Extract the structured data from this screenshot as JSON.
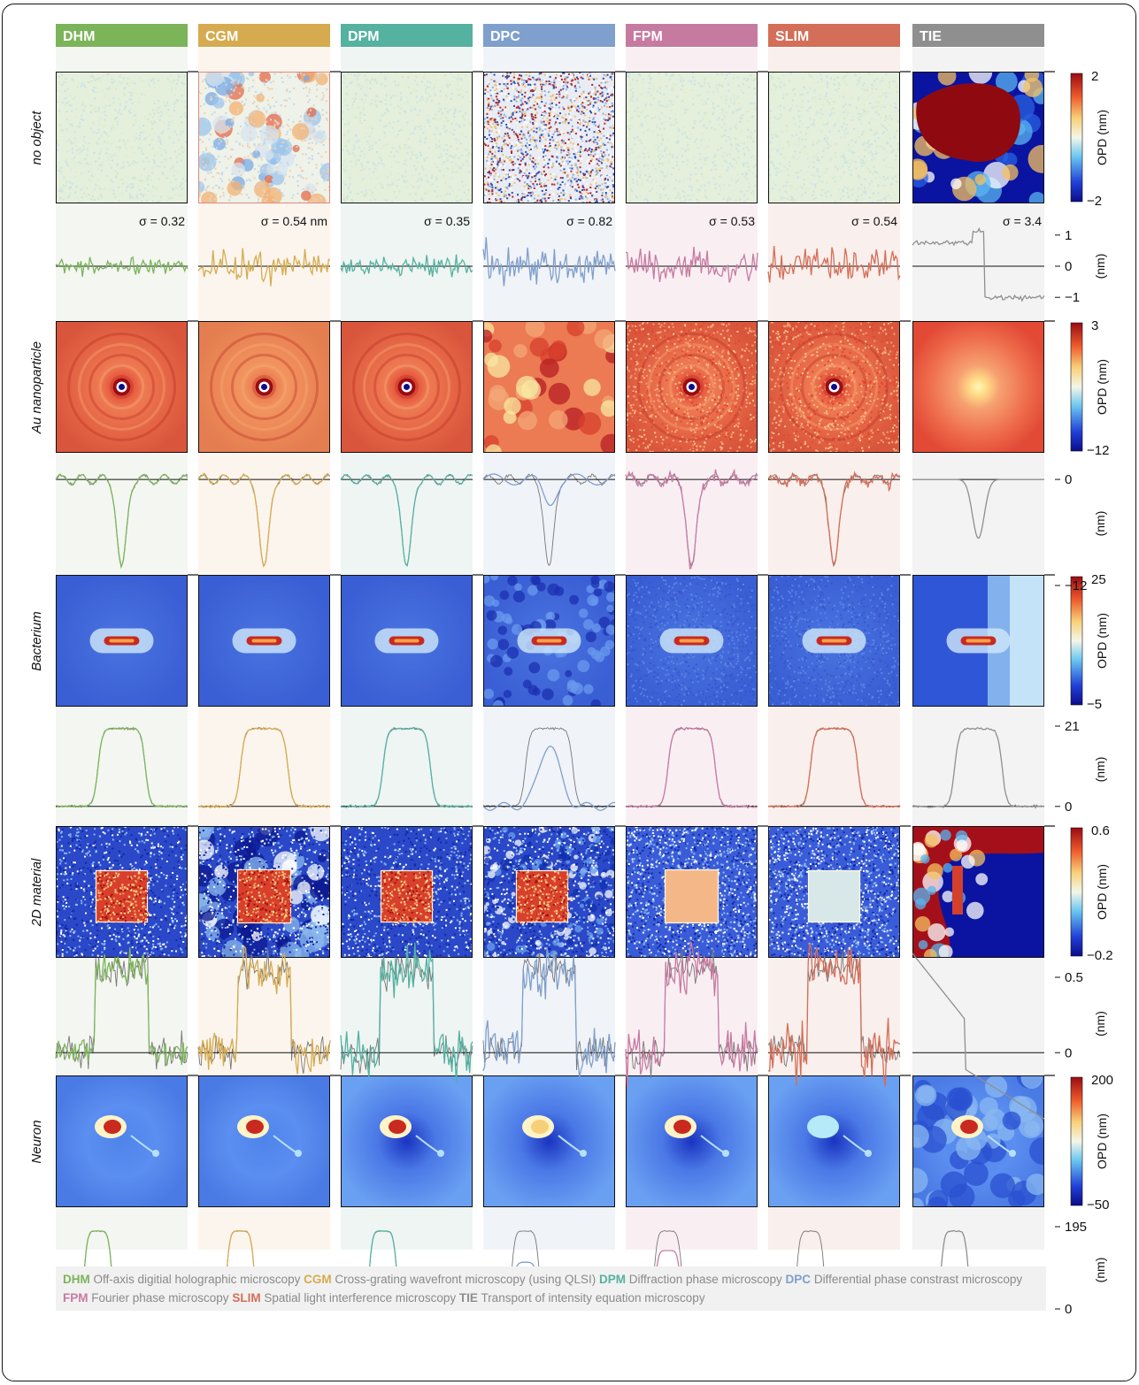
{
  "methods": [
    {
      "abbr": "DHM",
      "color": "#7cb45a",
      "bg": "#f3f6f1",
      "desc": "Off-axis digitial holographic microscopy"
    },
    {
      "abbr": "CGM",
      "color": "#d6ab4f",
      "bg": "#fbf5ed",
      "desc": "Cross-grating wavefront microscopy (using QLSI)"
    },
    {
      "abbr": "DPM",
      "color": "#55b1a0",
      "bg": "#eef5f3",
      "desc": "Diffraction phase microscopy"
    },
    {
      "abbr": "DPC",
      "color": "#7f9fcd",
      "bg": "#f0f3f7",
      "desc": "Differential phase constrast microscopy"
    },
    {
      "abbr": "FPM",
      "color": "#c77aa0",
      "bg": "#f9eff3",
      "desc": "Fourier phase microscopy"
    },
    {
      "abbr": "SLIM",
      "color": "#d46e58",
      "bg": "#f9efec",
      "desc": "Spatial light interference microscopy"
    },
    {
      "abbr": "TIE",
      "color": "#8f8f8f",
      "bg": "#f3f3f3",
      "desc": "Transport of intensity equation microscopy"
    }
  ],
  "rows": [
    {
      "label": "no object",
      "cbar_label": "OPD  (nm)",
      "cbar_ticks": [
        "2",
        "−2"
      ],
      "profile_ticks": [
        "1",
        "0",
        "−1"
      ],
      "profile_unit": "(nm)",
      "sigma": [
        "σ = 0.32",
        "σ = 0.54 nm",
        "σ = 0.35",
        "σ = 0.82",
        "σ = 0.53",
        "σ = 0.54",
        "σ = 3.4"
      ]
    },
    {
      "label": "Au nanoparticle",
      "cbar_label": "OPD  (nm)",
      "cbar_ticks": [
        "3",
        "−12"
      ],
      "profile_ticks": [
        "0",
        "−12"
      ],
      "profile_unit": "(nm)"
    },
    {
      "label": "Bacterium",
      "cbar_label": "OPD  (nm)",
      "cbar_ticks": [
        "25",
        "−5"
      ],
      "profile_ticks": [
        "21",
        "0"
      ],
      "profile_unit": "(nm)"
    },
    {
      "label": "2D material",
      "cbar_label": "OPD  (nm)",
      "cbar_ticks": [
        "0.6",
        "−0.2"
      ],
      "profile_ticks": [
        "0.5",
        "0"
      ],
      "profile_unit": "(nm)"
    },
    {
      "label": "Neuron",
      "cbar_label": "OPD  (nm)",
      "cbar_ticks": [
        "200",
        "−50"
      ],
      "profile_ticks": [
        "195",
        "0"
      ],
      "profile_unit": "(nm)"
    }
  ],
  "chart_data": {
    "type": "heatmap",
    "columns": [
      "DHM",
      "CGM",
      "DPM",
      "DPC",
      "FPM",
      "SLIM",
      "TIE"
    ],
    "rows": [
      "no object",
      "Au nanoparticle",
      "Bacterium",
      "2D material",
      "Neuron"
    ],
    "colorbar_ranges_nm": [
      [
        -2,
        2
      ],
      [
        -12,
        3
      ],
      [
        -5,
        25
      ],
      [
        -0.2,
        0.6
      ],
      [
        -50,
        200
      ]
    ],
    "noise_std_nm": {
      "DHM": 0.32,
      "CGM": 0.54,
      "DPM": 0.35,
      "DPC": 0.82,
      "FPM": 0.53,
      "SLIM": 0.54,
      "TIE": 3.4
    },
    "profile_peaks_nm": {
      "Au nanoparticle": -12,
      "Bacterium": 21,
      "2D material": 0.5,
      "Neuron": 195
    },
    "colormap": "jet-like (blue → cyan → yellow → red)"
  }
}
